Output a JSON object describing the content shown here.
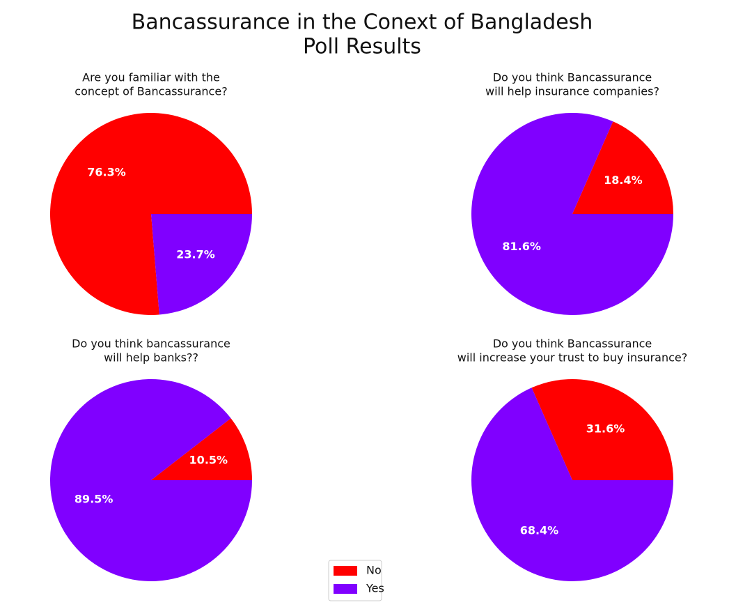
{
  "title": [
    "Bancassurance in the Conext of Bangladesh",
    "Poll Results"
  ],
  "chart_data": [
    {
      "type": "pie",
      "title": [
        "Are you familiar with the",
        "concept of Bancassurance?"
      ],
      "categories": [
        "No",
        "Yes"
      ],
      "values": [
        76.3,
        23.7
      ],
      "value_labels": [
        "76.3%",
        "23.7%"
      ],
      "colors": [
        "#ff0000",
        "#8000ff"
      ]
    },
    {
      "type": "pie",
      "title": [
        "Do you think Bancassurance",
        "will help insurance companies?"
      ],
      "categories": [
        "No",
        "Yes"
      ],
      "values": [
        18.4,
        81.6
      ],
      "value_labels": [
        "18.4%",
        "81.6%"
      ],
      "colors": [
        "#ff0000",
        "#8000ff"
      ]
    },
    {
      "type": "pie",
      "title": [
        "Do you think bancassurance",
        "will help banks??"
      ],
      "categories": [
        "No",
        "Yes"
      ],
      "values": [
        10.5,
        89.5
      ],
      "value_labels": [
        "10.5%",
        "89.5%"
      ],
      "colors": [
        "#ff0000",
        "#8000ff"
      ]
    },
    {
      "type": "pie",
      "title": [
        "Do you think Bancassurance",
        "will increase your trust to buy insurance?"
      ],
      "categories": [
        "No",
        "Yes"
      ],
      "values": [
        31.6,
        68.4
      ],
      "value_labels": [
        "31.6%",
        "68.4%"
      ],
      "colors": [
        "#ff0000",
        "#8000ff"
      ]
    }
  ]
}
